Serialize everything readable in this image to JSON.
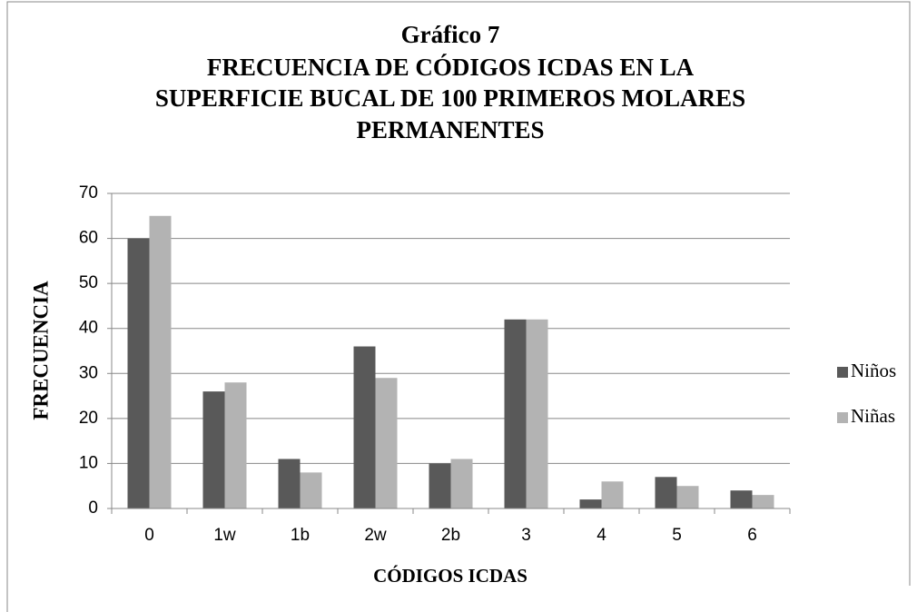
{
  "chart_data": {
    "type": "bar",
    "title": [
      "Gráfico 7",
      "FRECUENCIA DE CÓDIGOS ICDAS EN LA",
      "SUPERFICIE BUCAL DE 100 PRIMEROS MOLARES",
      "PERMANENTES"
    ],
    "x_label": "CÓDIGOS ICDAS",
    "y_label": "FRECUENCIA",
    "categories": [
      "0",
      "1w",
      "1b",
      "2w",
      "2b",
      "3",
      "4",
      "5",
      "6"
    ],
    "series": [
      {
        "name": "Niños",
        "color": "#595959",
        "values": [
          60,
          26,
          11,
          36,
          10,
          42,
          2,
          7,
          4
        ]
      },
      {
        "name": "Niñas",
        "color": "#b3b3b3",
        "values": [
          65,
          28,
          8,
          29,
          11,
          42,
          6,
          5,
          3
        ]
      }
    ],
    "ylim": [
      0,
      70
    ],
    "yticks": [
      0,
      10,
      20,
      30,
      40,
      50,
      60,
      70
    ],
    "grid": true,
    "legend": "right"
  }
}
